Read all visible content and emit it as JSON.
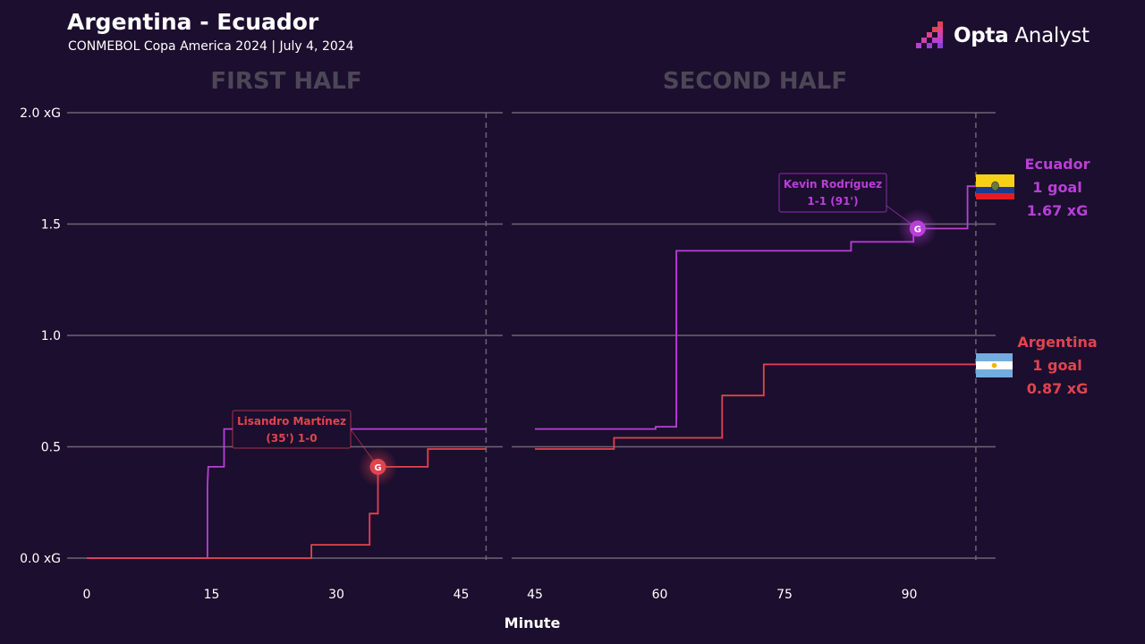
{
  "header": {
    "title": "Argentina - Ecuador",
    "subtitle": "CONMEBOL Copa America 2024 | July 4, 2024"
  },
  "brand": {
    "name_bold": "Opta",
    "name_rest": " Analyst"
  },
  "colors": {
    "background": "#1c0e2e",
    "ecuador": "#b93fd8",
    "argentina": "#e0444f",
    "grid": "#6a6672",
    "half_title": "#4b4756"
  },
  "chart_data": {
    "type": "line",
    "step": true,
    "xlabel": "Minute",
    "ylabel": "",
    "ylim": [
      0,
      2.0
    ],
    "y_ticks": [
      "0.0 xG",
      "0.5",
      "1.0",
      "1.5",
      "2.0 xG"
    ],
    "grid": true,
    "panels": [
      {
        "title": "FIRST HALF",
        "xlim": [
          0,
          48
        ],
        "x_ticks": [
          "0",
          "15",
          "30",
          "45"
        ],
        "end_minute": 48
      },
      {
        "title": "SECOND HALF",
        "xlim": [
          45,
          98
        ],
        "x_ticks": [
          "45",
          "60",
          "75",
          "90"
        ],
        "end_minute": 98
      }
    ],
    "series": [
      {
        "name": "Ecuador",
        "color": "#b93fd8",
        "first_half": [
          [
            0,
            0
          ],
          [
            14.5,
            0
          ],
          [
            14.5,
            0.32
          ],
          [
            14.6,
            0.41
          ],
          [
            16.5,
            0.41
          ],
          [
            16.5,
            0.58
          ],
          [
            48,
            0.58
          ]
        ],
        "second_half": [
          [
            45,
            0.58
          ],
          [
            59.5,
            0.58
          ],
          [
            59.5,
            0.59
          ],
          [
            62,
            0.59
          ],
          [
            62,
            1.38
          ],
          [
            83,
            1.38
          ],
          [
            83,
            1.42
          ],
          [
            90.5,
            1.42
          ],
          [
            90.5,
            1.46
          ],
          [
            91,
            1.46
          ],
          [
            91,
            1.48
          ],
          [
            97,
            1.48
          ],
          [
            97,
            1.67
          ],
          [
            98,
            1.67
          ]
        ]
      },
      {
        "name": "Argentina",
        "color": "#e0444f",
        "first_half": [
          [
            0,
            0
          ],
          [
            27,
            0
          ],
          [
            27,
            0.06
          ],
          [
            34,
            0.06
          ],
          [
            34,
            0.2
          ],
          [
            35,
            0.2
          ],
          [
            35,
            0.41
          ],
          [
            41,
            0.41
          ],
          [
            41,
            0.49
          ],
          [
            48,
            0.49
          ]
        ],
        "second_half": [
          [
            45,
            0.49
          ],
          [
            54.5,
            0.49
          ],
          [
            54.5,
            0.54
          ],
          [
            67.5,
            0.54
          ],
          [
            67.5,
            0.73
          ],
          [
            72.5,
            0.73
          ],
          [
            72.5,
            0.87
          ],
          [
            98,
            0.87
          ]
        ]
      }
    ],
    "goals": [
      {
        "team": "Argentina",
        "half": 1,
        "minute": 35,
        "xg": 0.41,
        "marker": "G",
        "annotation": [
          "Lisandro Martínez",
          "(35') 1-0"
        ]
      },
      {
        "team": "Ecuador",
        "half": 2,
        "minute": 91,
        "xg": 1.48,
        "marker": "G",
        "annotation": [
          "Kevin Rodríguez",
          "1-1 (91')"
        ]
      }
    ],
    "team_summaries": [
      {
        "team": "Ecuador",
        "flag": "ecuador-flag",
        "name": "Ecuador",
        "goals": "1 goal",
        "xg": "1.67 xG",
        "color": "#b93fd8"
      },
      {
        "team": "Argentina",
        "flag": "argentina-flag",
        "name": "Argentina",
        "goals": "1 goal",
        "xg": "0.87 xG",
        "color": "#e0444f"
      }
    ]
  }
}
